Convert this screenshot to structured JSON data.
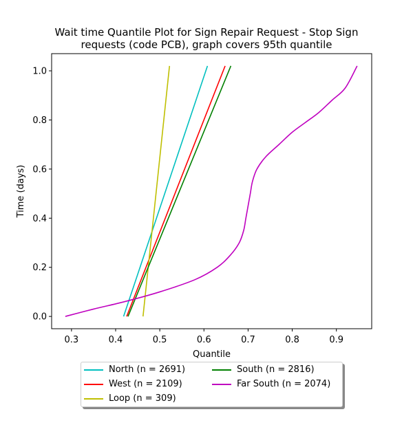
{
  "chart_data": {
    "type": "line",
    "title_line1": "Wait time Quantile Plot for Sign Repair Request - Stop Sign",
    "title_line2": "requests (code PCB), graph covers 95th quantile",
    "xlabel": "Quantile",
    "ylabel": "Time (days)",
    "xlim": [
      0.255,
      0.98
    ],
    "ylim": [
      -0.05,
      1.07
    ],
    "xticks": [
      0.3,
      0.4,
      0.5,
      0.6,
      0.7,
      0.8,
      0.9
    ],
    "xtick_labels": [
      "0.3",
      "0.4",
      "0.5",
      "0.6",
      "0.7",
      "0.8",
      "0.9"
    ],
    "yticks": [
      0.0,
      0.2,
      0.4,
      0.6,
      0.8,
      1.0
    ],
    "ytick_labels": [
      "0.0",
      "0.2",
      "0.4",
      "0.6",
      "0.8",
      "1.0"
    ],
    "grid": false,
    "legend_placement": "below",
    "series": [
      {
        "name": "North (n = 2691)",
        "color": "#00bfbf",
        "x": [
          0.418,
          0.608
        ],
        "y": [
          0.0,
          1.02
        ]
      },
      {
        "name": "West (n = 2109)",
        "color": "#ff0000",
        "x": [
          0.425,
          0.648
        ],
        "y": [
          0.0,
          1.02
        ]
      },
      {
        "name": "Loop (n = 309)",
        "color": "#bfbf00",
        "x": [
          0.462,
          0.522
        ],
        "y": [
          0.0,
          1.02
        ]
      },
      {
        "name": "South (n = 2816)",
        "color": "#008000",
        "x": [
          0.428,
          0.661
        ],
        "y": [
          0.0,
          1.02
        ]
      },
      {
        "name": "Far South (n = 2074)",
        "color": "#bf00bf",
        "x": [
          0.286,
          0.35,
          0.42,
          0.5,
          0.58,
          0.63,
          0.66,
          0.68,
          0.69,
          0.695,
          0.7,
          0.705,
          0.71,
          0.72,
          0.74,
          0.77,
          0.8,
          0.83,
          0.86,
          0.89,
          0.92,
          0.947
        ],
        "y": [
          0.0,
          0.03,
          0.06,
          0.1,
          0.15,
          0.2,
          0.25,
          0.3,
          0.35,
          0.4,
          0.45,
          0.5,
          0.55,
          0.6,
          0.65,
          0.7,
          0.75,
          0.79,
          0.83,
          0.88,
          0.93,
          1.02
        ]
      }
    ]
  },
  "legend": {
    "items": [
      {
        "label": "North (n = 2691)",
        "color": "#00bfbf"
      },
      {
        "label": "West (n = 2109)",
        "color": "#ff0000"
      },
      {
        "label": "Loop (n = 309)",
        "color": "#bfbf00"
      },
      {
        "label": "South (n = 2816)",
        "color": "#008000"
      },
      {
        "label": "Far South (n = 2074)",
        "color": "#bf00bf"
      }
    ]
  }
}
